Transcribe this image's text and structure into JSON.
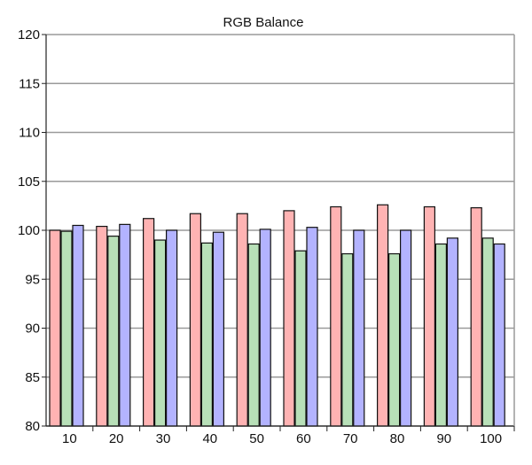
{
  "chart_data": {
    "type": "bar",
    "title": "RGB Balance",
    "xlabel": "",
    "ylabel": "",
    "categories": [
      "10",
      "20",
      "30",
      "40",
      "50",
      "60",
      "70",
      "80",
      "90",
      "100"
    ],
    "ylim": [
      80,
      120
    ],
    "yticks": [
      80,
      85,
      90,
      95,
      100,
      105,
      110,
      115,
      120
    ],
    "grid": true,
    "legend": "none",
    "series": [
      {
        "color": "#ffb3b3",
        "values": [
          100.0,
          100.4,
          101.2,
          101.7,
          101.7,
          102.0,
          102.4,
          102.6,
          102.4,
          102.3
        ]
      },
      {
        "color": "#b8e0b8",
        "values": [
          99.9,
          99.4,
          99.0,
          98.7,
          98.6,
          97.9,
          97.6,
          97.6,
          98.6,
          99.2
        ]
      },
      {
        "color": "#b3b3ff",
        "values": [
          100.5,
          100.6,
          100.0,
          99.8,
          100.1,
          100.3,
          100.0,
          100.0,
          99.2,
          98.6
        ]
      }
    ]
  }
}
